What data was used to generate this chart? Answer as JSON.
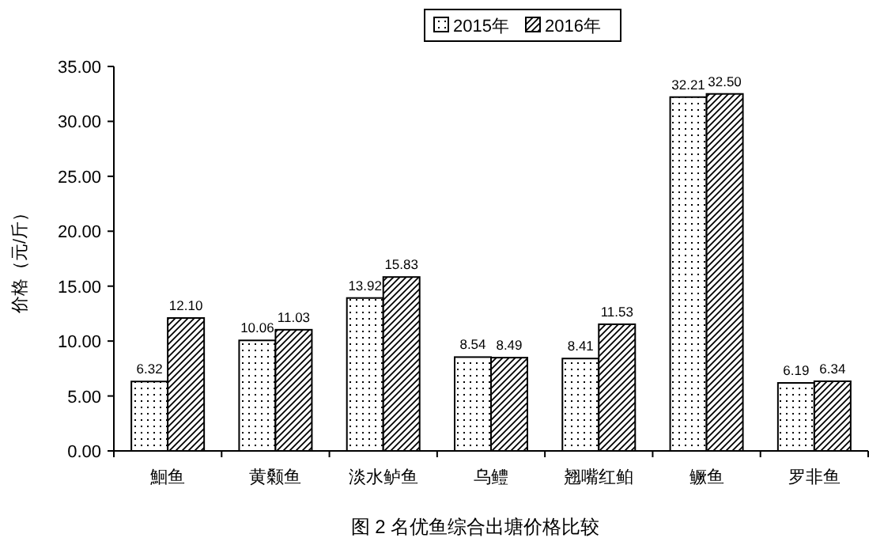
{
  "chart_data": {
    "type": "bar",
    "title": "图 2 名优鱼综合出塘价格比较",
    "ylabel": "价格（元/斤）",
    "categories": [
      "鮰鱼",
      "黄颡鱼",
      "淡水鲈鱼",
      "乌鳢",
      "翘嘴红鲌",
      "鳜鱼",
      "罗非鱼"
    ],
    "series": [
      {
        "name": "2015年",
        "color": "#000000",
        "values": [
          6.32,
          10.06,
          13.92,
          8.54,
          8.41,
          32.21,
          6.19
        ],
        "value_labels": [
          "6.32",
          "10.06",
          "13.92",
          "8.54",
          "8.41",
          "32.21",
          "6.19"
        ]
      },
      {
        "name": "2016年",
        "color": "#000000",
        "values": [
          12.1,
          11.03,
          15.83,
          8.49,
          11.53,
          32.5,
          6.34
        ],
        "value_labels": [
          "12.10",
          "11.03",
          "15.83",
          "8.49",
          "11.53",
          "32.50",
          "6.34"
        ]
      }
    ],
    "ylim": [
      0,
      35
    ],
    "yticks": [
      {
        "value": 0,
        "label": "0.00"
      },
      {
        "value": 5,
        "label": "5.00"
      },
      {
        "value": 10,
        "label": "10.00"
      },
      {
        "value": 15,
        "label": "15.00"
      },
      {
        "value": 20,
        "label": "20.00"
      },
      {
        "value": 25,
        "label": "25.00"
      },
      {
        "value": 30,
        "label": "30.00"
      },
      {
        "value": 35,
        "label": "35.00"
      }
    ],
    "grid": false,
    "legend": "top"
  }
}
